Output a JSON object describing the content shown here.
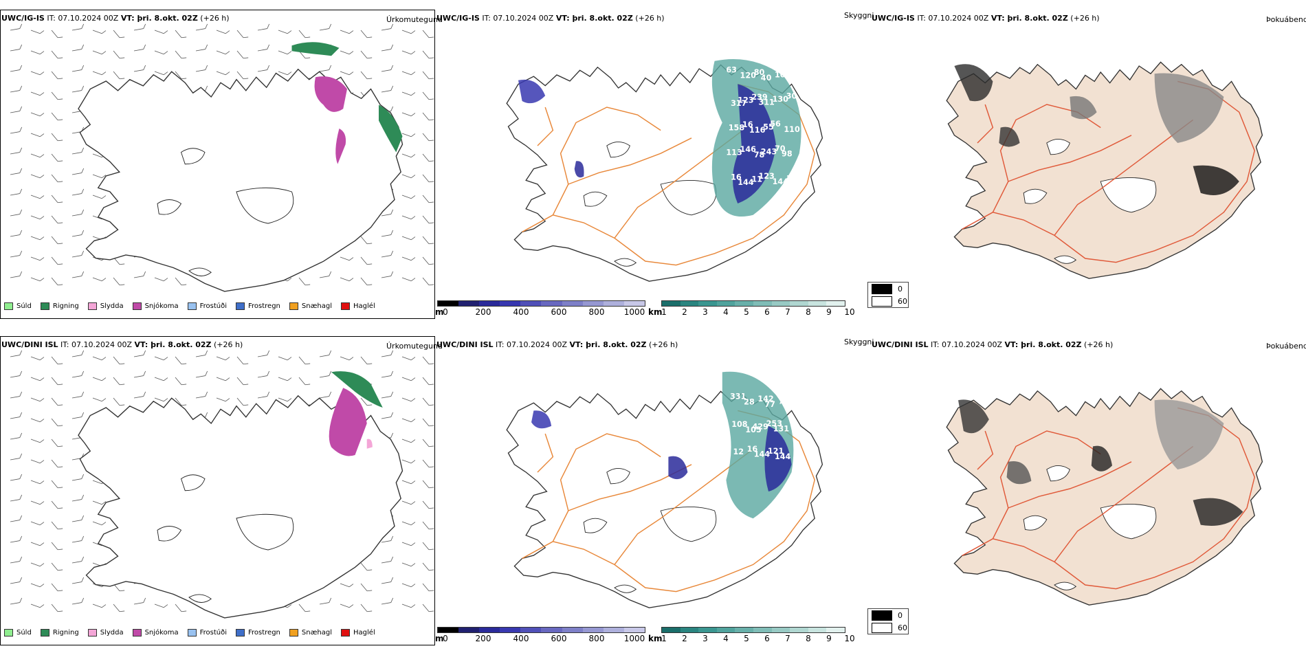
{
  "rows": [
    {
      "model_bold": "UWC/IG-IS",
      "it_text": " IT: 07.10.2024 00Z ",
      "vt_bold": "VT: þri. 8.okt. 02Z",
      "lead_text": " (+26 h)",
      "precip_title": "Úrkomutegund",
      "vis_title": "Skyggni",
      "cloud_title": "Þokuábendi",
      "labels": [
        "63",
        "120",
        "80",
        "40",
        "101",
        "235",
        "317",
        "123",
        "239",
        "311",
        "130",
        "30",
        "158",
        "16",
        "116",
        "55",
        "56",
        "110",
        "113",
        "146",
        "78",
        "243",
        "70",
        "98",
        "16",
        "144",
        "11",
        "123",
        "144",
        "13"
      ]
    },
    {
      "model_bold": "UWC/DINI ISL",
      "it_text": " IT: 07.10.2024 00Z ",
      "vt_bold": "VT: þri. 8.okt. 02Z",
      "lead_text": " (+26 h)",
      "precip_title": "Úrkomutegund",
      "vis_title": "Skyggni",
      "cloud_title": "Þokuábendi",
      "labels": [
        "331",
        "28",
        "142",
        "77",
        "79",
        "108",
        "105",
        "429",
        "253",
        "131",
        "12",
        "16",
        "144",
        "121",
        "144"
      ]
    }
  ],
  "precip_legend": [
    {
      "label": "Súld",
      "color": "#90ee90"
    },
    {
      "label": "Rigning",
      "color": "#2e8b57"
    },
    {
      "label": "Slydda",
      "color": "#f4a6d7"
    },
    {
      "label": "Snjókoma",
      "color": "#c04aa8"
    },
    {
      "label": "Frostúði",
      "color": "#99c2f0"
    },
    {
      "label": "Frostregn",
      "color": "#3f6fc9"
    },
    {
      "label": "Snæhagl",
      "color": "#f0a020"
    },
    {
      "label": "Haglél",
      "color": "#e01010"
    }
  ],
  "ceiling_bar": {
    "unit": "m",
    "ticks": [
      "0",
      "200",
      "400",
      "600",
      "800",
      "1000"
    ],
    "colors": [
      "#000000",
      "#202070",
      "#2a2a9a",
      "#3838b0",
      "#5050b8",
      "#6868c0",
      "#7e80c8",
      "#9698d2",
      "#aeb0dc",
      "#c8c8e8"
    ]
  },
  "vis_bar": {
    "unit": "km",
    "ticks": [
      "1",
      "2",
      "3",
      "4",
      "5",
      "6",
      "7",
      "8",
      "9",
      "10"
    ],
    "colors": [
      "#1a6e6a",
      "#2a8580",
      "#3a9690",
      "#50a39d",
      "#68b0aa",
      "#80bdb7",
      "#98cac4",
      "#b0d7d1",
      "#c8e4df",
      "#e2f1ee"
    ]
  },
  "fog_legend": [
    {
      "label": "0",
      "color": "#000000"
    },
    {
      "label": "60",
      "color": "#ffffff"
    }
  ]
}
